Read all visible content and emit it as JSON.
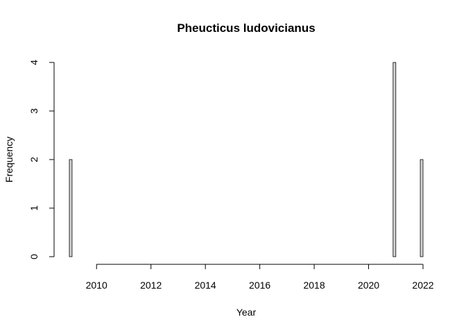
{
  "chart_data": {
    "type": "bar",
    "title": "Pheucticus ludovicianus",
    "xlabel": "Year",
    "ylabel": "Frequency",
    "xlim": [
      2009,
      2022
    ],
    "ylim": [
      0,
      4
    ],
    "bin_width": 0.1,
    "x_ticks": [
      2010,
      2012,
      2014,
      2016,
      2018,
      2020,
      2022
    ],
    "y_ticks": [
      0,
      1,
      2,
      3,
      4
    ],
    "bars": [
      {
        "x": 2009.0,
        "value": 2
      },
      {
        "x": 2020.9,
        "value": 4
      },
      {
        "x": 2021.9,
        "value": 2
      }
    ],
    "grid": false,
    "legend": "none",
    "bar_fill": "#d3d3d3",
    "bar_stroke": "#000000"
  }
}
